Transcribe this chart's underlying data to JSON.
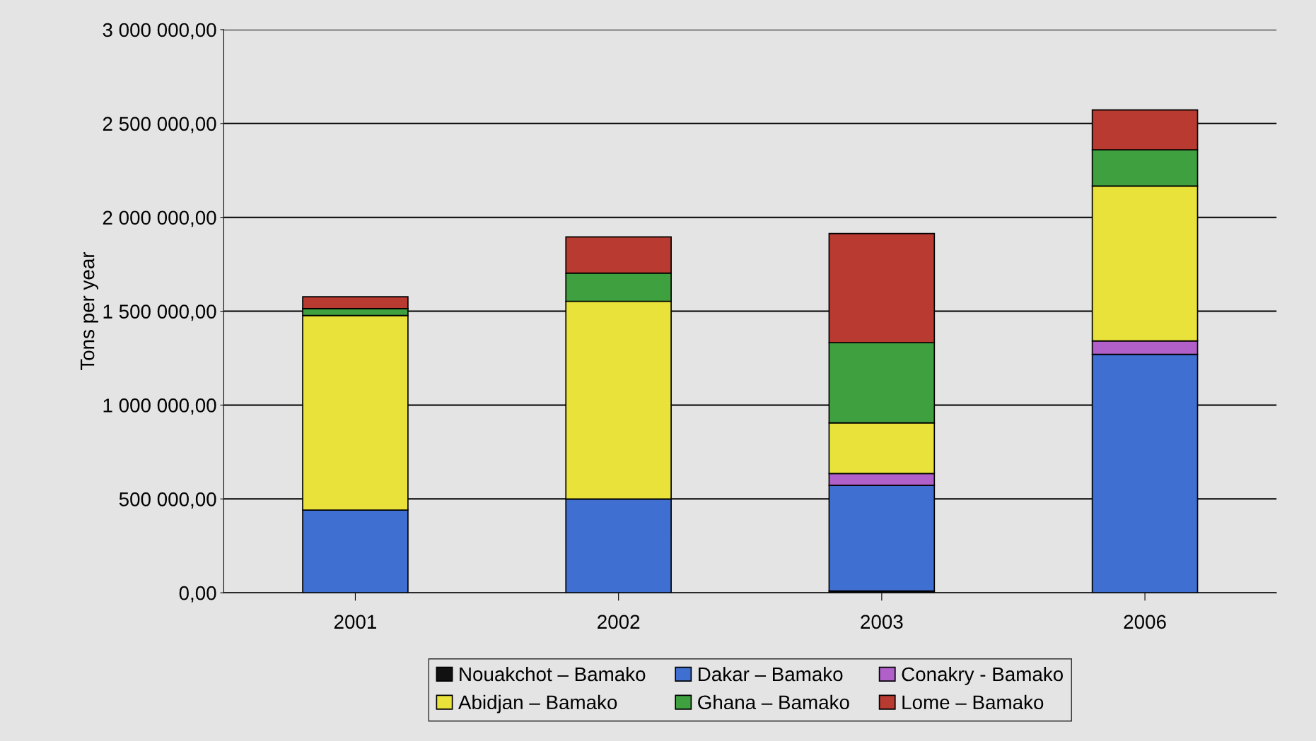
{
  "chart_data": {
    "type": "bar",
    "stacked": true,
    "ylabel": "Tons per year",
    "categories": [
      "2001",
      "2002",
      "2003",
      "2006"
    ],
    "series": [
      {
        "name": "Nouakchot – Bamako",
        "color": "#111111",
        "values": [
          0,
          0,
          10000,
          0
        ]
      },
      {
        "name": "Dakar – Bamako",
        "color": "#3f6fd0",
        "values": [
          441000,
          500000,
          562000,
          1270000
        ]
      },
      {
        "name": "Conakry - Bamako",
        "color": "#b060c8",
        "values": [
          0,
          null,
          63000,
          72000
        ]
      },
      {
        "name": "Abidjan – Bamako",
        "color": "#e8e23a",
        "values": [
          1036000,
          1053000,
          270000,
          825000
        ]
      },
      {
        "name": "Ghana – Bamako",
        "color": "#3fa03f",
        "values": [
          37000,
          150000,
          428000,
          193000
        ]
      },
      {
        "name": "Lome – Bamako",
        "color": "#b83a30",
        "values": [
          63000,
          193000,
          581000,
          212000
        ]
      }
    ],
    "ylim": [
      0,
      3000000
    ],
    "yticks": [
      {
        "value": 0,
        "label": "0,00"
      },
      {
        "value": 500000,
        "label": "500 000,00"
      },
      {
        "value": 1000000,
        "label": "1 000 000,00"
      },
      {
        "value": 1500000,
        "label": "1 500 000,00"
      },
      {
        "value": 2000000,
        "label": "2 000 000,00"
      },
      {
        "value": 2500000,
        "label": "2 500 000,00"
      },
      {
        "value": 3000000,
        "label": "3 000 000,00"
      }
    ],
    "grid": "y",
    "legend": "bottom"
  }
}
